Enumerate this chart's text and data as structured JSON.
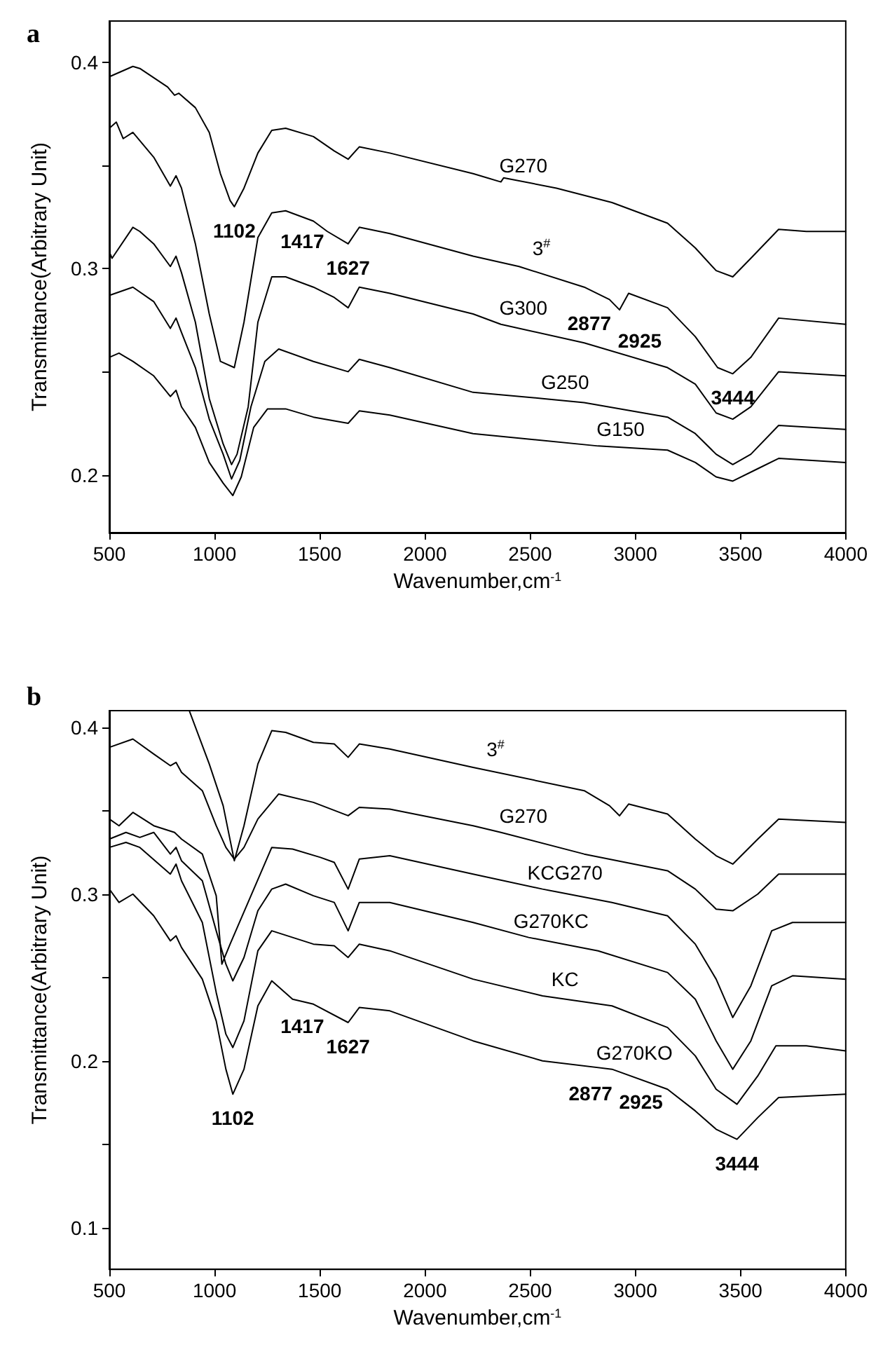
{
  "chart_data": [
    {
      "type": "line",
      "title": "a",
      "xlabel": "Wavenumber,cm$^{-1}$",
      "ylabel": "Transmittance(Arbitrary Unit)",
      "xlim": [
        500,
        4000
      ],
      "xticks": [
        500,
        1000,
        1500,
        2000,
        2500,
        3000,
        3500,
        4000
      ],
      "ylim": [
        0.172,
        0.42
      ],
      "yticks": [
        0.2,
        {
          "value": 0.25,
          "label": null
        },
        0.3,
        {
          "value": 0.35,
          "label": null
        },
        0.4
      ],
      "grid": false,
      "line_style": "solid",
      "annotations": [
        {
          "text": "1102",
          "x": 1094,
          "y": 0.33
        },
        {
          "text": "1417",
          "x": 1417,
          "y": 0.325
        },
        {
          "text": "1627",
          "x": 1635,
          "y": 0.312
        },
        {
          "text": "2877",
          "x": 2877,
          "y": 0.285
        },
        {
          "text": "2925",
          "x": 2925,
          "y": 0.28
        },
        {
          "text": "3444",
          "x": 3463,
          "y": 0.249
        }
      ],
      "series": [
        {
          "name": "G270",
          "color": "#000000",
          "x": [
            500,
            612,
            645,
            777,
            810,
            830,
            909,
            975,
            1028,
            1074,
            1094,
            1140,
            1206,
            1272,
            1338,
            1470,
            1569,
            1635,
            1688,
            1833,
            2229,
            2361,
            2374,
            2625,
            2889,
            3153,
            3285,
            3384,
            3463,
            3549,
            3681,
            3813,
            4000
          ],
          "values": [
            0.393,
            0.398,
            0.397,
            0.388,
            0.384,
            0.385,
            0.378,
            0.366,
            0.346,
            0.333,
            0.33,
            0.339,
            0.356,
            0.367,
            0.368,
            0.364,
            0.357,
            0.353,
            0.359,
            0.356,
            0.346,
            0.342,
            0.344,
            0.339,
            0.332,
            0.322,
            0.31,
            0.299,
            0.296,
            0.305,
            0.319,
            0.318,
            0.318
          ]
        },
        {
          "name": "3$^{#}$",
          "color": "#000000",
          "x": [
            500,
            533,
            566,
            612,
            711,
            790,
            817,
            843,
            909,
            975,
            1028,
            1094,
            1140,
            1206,
            1272,
            1338,
            1470,
            1536,
            1635,
            1688,
            1833,
            2229,
            2447,
            2757,
            2877,
            2925,
            2968,
            3153,
            3285,
            3391,
            3463,
            3549,
            3681,
            4000
          ],
          "values": [
            0.368,
            0.371,
            0.363,
            0.366,
            0.354,
            0.34,
            0.345,
            0.339,
            0.312,
            0.278,
            0.255,
            0.252,
            0.274,
            0.315,
            0.327,
            0.328,
            0.323,
            0.318,
            0.312,
            0.32,
            0.317,
            0.306,
            0.301,
            0.291,
            0.285,
            0.28,
            0.288,
            0.281,
            0.267,
            0.252,
            0.249,
            0.257,
            0.276,
            0.273
          ]
        },
        {
          "name": "G300",
          "color": "#000000",
          "x": [
            500,
            513,
            612,
            645,
            711,
            790,
            817,
            843,
            909,
            975,
            1041,
            1081,
            1107,
            1160,
            1206,
            1272,
            1338,
            1470,
            1569,
            1635,
            1688,
            1833,
            2229,
            2361,
            2757,
            3153,
            3285,
            3384,
            3463,
            3549,
            3681,
            4000
          ],
          "values": [
            0.308,
            0.305,
            0.32,
            0.318,
            0.312,
            0.301,
            0.306,
            0.298,
            0.274,
            0.237,
            0.215,
            0.205,
            0.21,
            0.233,
            0.274,
            0.296,
            0.296,
            0.291,
            0.286,
            0.281,
            0.291,
            0.288,
            0.278,
            0.273,
            0.264,
            0.252,
            0.244,
            0.23,
            0.227,
            0.233,
            0.25,
            0.248
          ]
        },
        {
          "name": "G250",
          "color": "#000000",
          "x": [
            500,
            612,
            711,
            790,
            817,
            843,
            909,
            975,
            1041,
            1081,
            1120,
            1173,
            1239,
            1305,
            1470,
            1635,
            1688,
            1833,
            2229,
            2559,
            2757,
            3153,
            3285,
            3384,
            3463,
            3549,
            3681,
            4000
          ],
          "values": [
            0.287,
            0.291,
            0.284,
            0.271,
            0.276,
            0.269,
            0.252,
            0.227,
            0.21,
            0.198,
            0.207,
            0.233,
            0.255,
            0.261,
            0.255,
            0.25,
            0.256,
            0.252,
            0.24,
            0.237,
            0.235,
            0.228,
            0.22,
            0.21,
            0.205,
            0.21,
            0.224,
            0.222
          ]
        },
        {
          "name": "G150",
          "color": "#000000",
          "x": [
            500,
            546,
            612,
            711,
            790,
            817,
            843,
            909,
            975,
            1041,
            1087,
            1127,
            1186,
            1252,
            1338,
            1470,
            1635,
            1688,
            1833,
            2229,
            2823,
            3153,
            3285,
            3384,
            3463,
            3582,
            3681,
            4000
          ],
          "values": [
            0.257,
            0.259,
            0.255,
            0.248,
            0.238,
            0.241,
            0.233,
            0.223,
            0.206,
            0.196,
            0.19,
            0.199,
            0.223,
            0.232,
            0.232,
            0.228,
            0.225,
            0.231,
            0.229,
            0.22,
            0.214,
            0.212,
            0.206,
            0.199,
            0.197,
            0.203,
            0.208,
            0.206
          ]
        }
      ]
    },
    {
      "type": "line",
      "title": "b",
      "xlabel": "Wavenumber,cm$^{-1}$",
      "ylabel": "Transmittance(Arbitrary Unit)",
      "xlim": [
        500,
        4000
      ],
      "xticks": [
        500,
        1000,
        1500,
        2000,
        2500,
        3000,
        3500,
        4000
      ],
      "ylim": [
        0.075,
        0.41
      ],
      "yticks": [
        0.1,
        {
          "value": 0.15,
          "label": null
        },
        0.2,
        {
          "value": 0.25,
          "label": null
        },
        0.3,
        {
          "value": 0.35,
          "label": null
        },
        0.4
      ],
      "grid": false,
      "line_style": "solid",
      "annotations": [
        {
          "text": "1102",
          "x": 1087,
          "y": 0.18
        },
        {
          "text": "1417",
          "x": 1417,
          "y": 0.235
        },
        {
          "text": "1627",
          "x": 1635,
          "y": 0.223
        },
        {
          "text": "2877",
          "x": 2889,
          "y": 0.195
        },
        {
          "text": "2925",
          "x": 2925,
          "y": 0.194
        },
        {
          "text": "3444",
          "x": 3483,
          "y": 0.153
        }
      ],
      "series": [
        {
          "name": "3$^{#}$",
          "color": "#000000",
          "x": [
            880,
            975,
            1041,
            1094,
            1140,
            1206,
            1272,
            1338,
            1470,
            1569,
            1635,
            1688,
            1833,
            2229,
            2757,
            2877,
            2925,
            2968,
            3153,
            3285,
            3384,
            3463,
            3582,
            3681,
            4000
          ],
          "values": [
            0.41,
            0.378,
            0.353,
            0.32,
            0.341,
            0.378,
            0.398,
            0.397,
            0.391,
            0.39,
            0.382,
            0.39,
            0.387,
            0.376,
            0.362,
            0.353,
            0.347,
            0.354,
            0.348,
            0.333,
            0.323,
            0.318,
            0.333,
            0.345,
            0.343
          ]
        },
        {
          "name": "G270",
          "color": "#000000",
          "x": [
            500,
            612,
            711,
            790,
            817,
            843,
            942,
            1008,
            1054,
            1094,
            1140,
            1206,
            1305,
            1470,
            1635,
            1688,
            1833,
            2229,
            2361,
            2757,
            3153,
            3285,
            3384,
            3463,
            3582,
            3681,
            4000
          ],
          "values": [
            0.388,
            0.393,
            0.384,
            0.377,
            0.379,
            0.373,
            0.362,
            0.341,
            0.328,
            0.321,
            0.328,
            0.345,
            0.36,
            0.355,
            0.347,
            0.352,
            0.351,
            0.341,
            0.337,
            0.324,
            0.314,
            0.303,
            0.291,
            0.29,
            0.3,
            0.312,
            0.312
          ]
        },
        {
          "name": "KCG270",
          "color": "#000000",
          "x": [
            500,
            546,
            612,
            711,
            810,
            843,
            942,
            1008,
            1035,
            1074,
            1173,
            1272,
            1371,
            1503,
            1569,
            1635,
            1688,
            1833,
            2229,
            2559,
            2889,
            3153,
            3285,
            3384,
            3463,
            3549,
            3648,
            3747,
            4000
          ],
          "values": [
            0.345,
            0.341,
            0.349,
            0.341,
            0.337,
            0.333,
            0.324,
            0.299,
            0.258,
            0.27,
            0.299,
            0.328,
            0.327,
            0.322,
            0.319,
            0.303,
            0.321,
            0.323,
            0.312,
            0.303,
            0.295,
            0.287,
            0.27,
            0.249,
            0.226,
            0.245,
            0.278,
            0.283,
            0.283
          ]
        },
        {
          "name": "G270KC",
          "color": "#000000",
          "x": [
            500,
            579,
            645,
            711,
            790,
            817,
            843,
            942,
            1008,
            1054,
            1087,
            1140,
            1206,
            1272,
            1338,
            1470,
            1569,
            1635,
            1688,
            1833,
            2229,
            2493,
            2823,
            3153,
            3285,
            3384,
            3463,
            3549,
            3648,
            3747,
            4000
          ],
          "values": [
            0.333,
            0.337,
            0.334,
            0.337,
            0.324,
            0.328,
            0.32,
            0.308,
            0.278,
            0.258,
            0.248,
            0.262,
            0.29,
            0.303,
            0.306,
            0.299,
            0.295,
            0.278,
            0.295,
            0.295,
            0.283,
            0.274,
            0.266,
            0.253,
            0.237,
            0.212,
            0.195,
            0.212,
            0.245,
            0.251,
            0.249
          ]
        },
        {
          "name": "KC",
          "color": "#000000",
          "x": [
            500,
            579,
            645,
            790,
            817,
            843,
            942,
            1008,
            1054,
            1087,
            1140,
            1206,
            1272,
            1371,
            1470,
            1569,
            1635,
            1688,
            1833,
            2229,
            2559,
            2889,
            3153,
            3285,
            3384,
            3483,
            3582,
            3668,
            3813,
            4000
          ],
          "values": [
            0.328,
            0.331,
            0.328,
            0.312,
            0.318,
            0.308,
            0.283,
            0.241,
            0.216,
            0.208,
            0.224,
            0.266,
            0.278,
            0.274,
            0.27,
            0.269,
            0.262,
            0.27,
            0.266,
            0.249,
            0.239,
            0.233,
            0.22,
            0.203,
            0.183,
            0.174,
            0.191,
            0.209,
            0.209,
            0.206
          ]
        },
        {
          "name": "G270KO",
          "color": "#000000",
          "x": [
            500,
            546,
            612,
            711,
            790,
            817,
            843,
            942,
            1008,
            1054,
            1087,
            1140,
            1206,
            1272,
            1371,
            1470,
            1635,
            1688,
            1833,
            2229,
            2559,
            2889,
            3153,
            3285,
            3384,
            3483,
            3582,
            3681,
            4000
          ],
          "values": [
            0.303,
            0.295,
            0.3,
            0.287,
            0.272,
            0.275,
            0.268,
            0.249,
            0.224,
            0.195,
            0.18,
            0.195,
            0.233,
            0.248,
            0.237,
            0.234,
            0.223,
            0.232,
            0.23,
            0.212,
            0.2,
            0.195,
            0.183,
            0.17,
            0.159,
            0.153,
            0.166,
            0.178,
            0.18
          ]
        }
      ]
    }
  ]
}
